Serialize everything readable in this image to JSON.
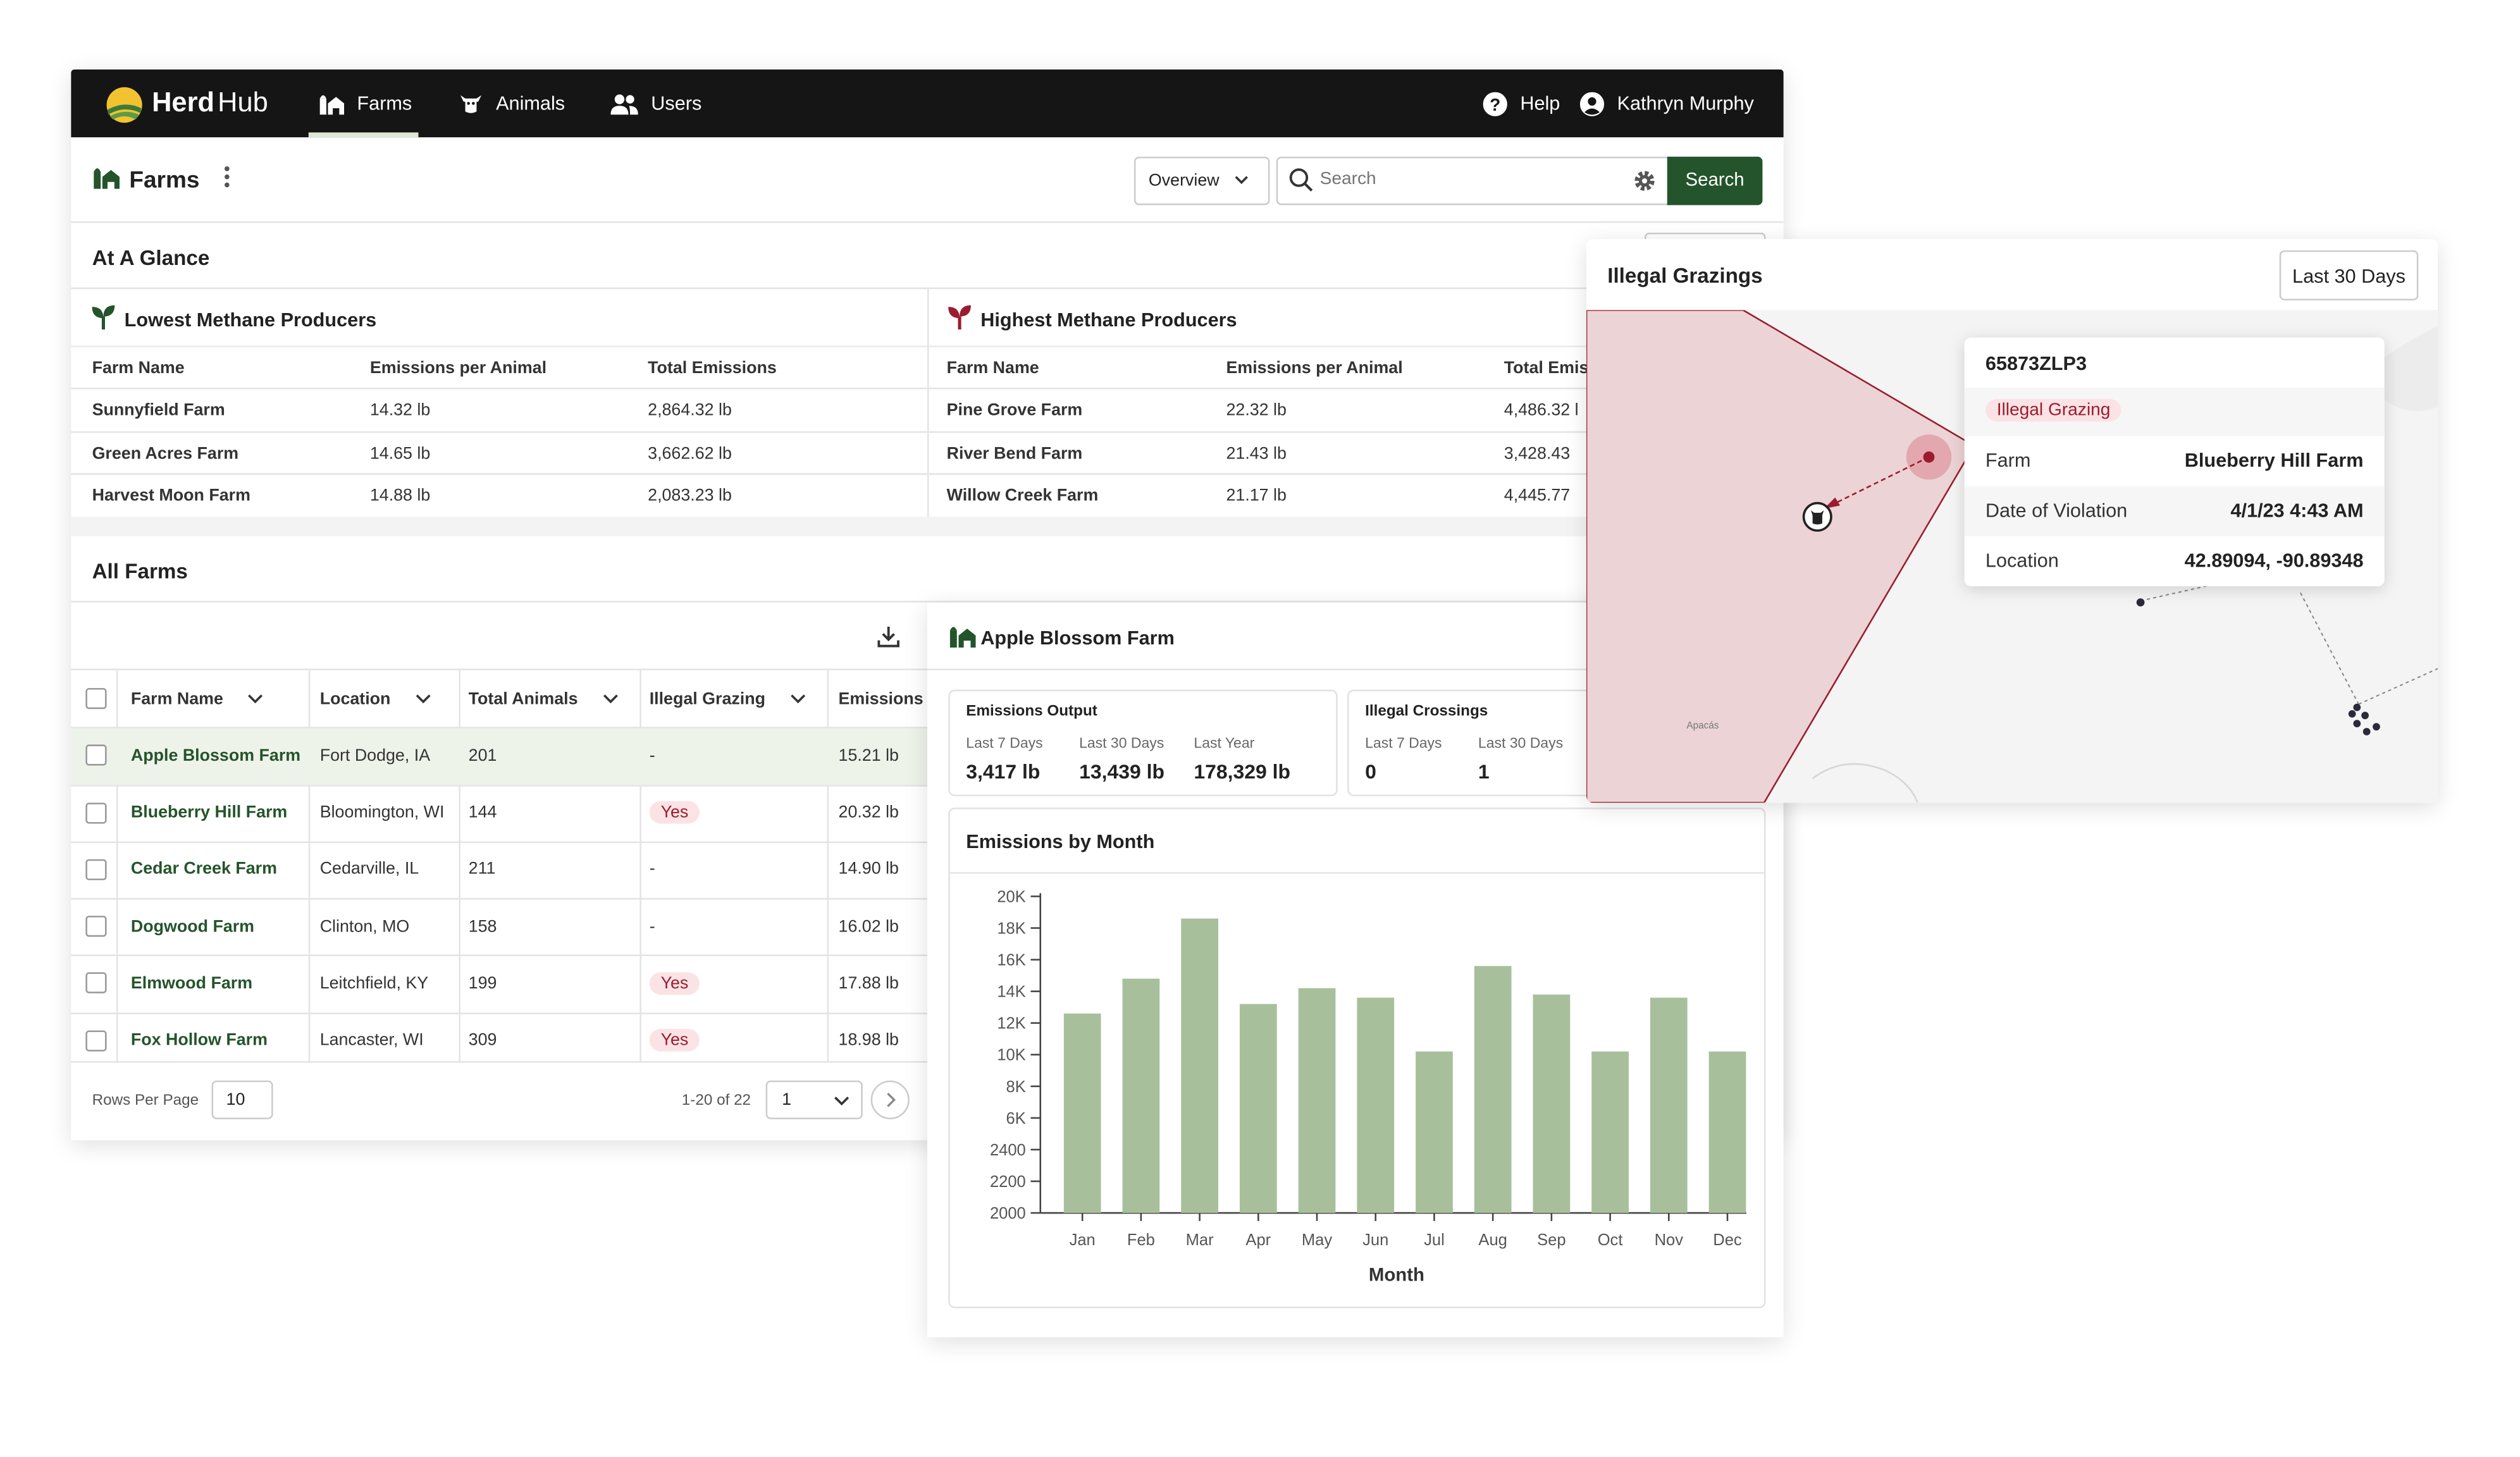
{
  "nav": {
    "logo_bold": "Herd",
    "logo_light": "Hub",
    "tabs": [
      {
        "label": "Farms",
        "icon": "farm-icon"
      },
      {
        "label": "Animals",
        "icon": "cow-icon"
      },
      {
        "label": "Users",
        "icon": "users-icon"
      }
    ],
    "help_label": "Help",
    "user_name": "Kathryn Murphy"
  },
  "page": {
    "title": "Farms",
    "view_select": "Overview",
    "search_placeholder": "Search",
    "search_button": "Search"
  },
  "glance": {
    "title": "At A Glance",
    "lowest": {
      "title": "Lowest Methane Producers",
      "columns": [
        "Farm Name",
        "Emissions per Animal",
        "Total Emissions"
      ],
      "rows": [
        [
          "Sunnyfield Farm",
          "14.32 lb",
          "2,864.32 lb"
        ],
        [
          "Green Acres Farm",
          "14.65 lb",
          "3,662.62 lb"
        ],
        [
          "Harvest Moon Farm",
          "14.88 lb",
          "2,083.23 lb"
        ]
      ]
    },
    "highest": {
      "title": "Highest Methane Producers",
      "columns": [
        "Farm Name",
        "Emissions per Animal",
        "Total Emis"
      ],
      "rows": [
        [
          "Pine Grove Farm",
          "22.32 lb",
          "4,486.32 l"
        ],
        [
          "River Bend Farm",
          "21.43 lb",
          "3,428.43"
        ],
        [
          "Willow Creek Farm",
          "21.17 lb",
          "4,445.77"
        ]
      ]
    }
  },
  "all_farms": {
    "title": "All Farms",
    "columns": [
      "Farm Name",
      "Location",
      "Total Animals",
      "Illegal Grazing",
      "Emissions p"
    ],
    "rows": [
      {
        "name": "Apple Blossom Farm",
        "location": "Fort Dodge, IA",
        "animals": "201",
        "grazing": "-",
        "emissions": "15.21 lb"
      },
      {
        "name": "Blueberry Hill Farm",
        "location": "Bloomington, WI",
        "animals": "144",
        "grazing": "Yes",
        "emissions": "20.32 lb"
      },
      {
        "name": "Cedar Creek Farm",
        "location": "Cedarville, IL",
        "animals": "211",
        "grazing": "-",
        "emissions": "14.90 lb"
      },
      {
        "name": "Dogwood Farm",
        "location": "Clinton, MO",
        "animals": "158",
        "grazing": "-",
        "emissions": "16.02 lb"
      },
      {
        "name": "Elmwood Farm",
        "location": "Leitchfield, KY",
        "animals": "199",
        "grazing": "Yes",
        "emissions": "17.88 lb"
      },
      {
        "name": "Fox Hollow Farm",
        "location": "Lancaster, WI",
        "animals": "309",
        "grazing": "Yes",
        "emissions": "18.98 lb"
      }
    ],
    "rows_per_page_label": "Rows Per Page",
    "rows_per_page": "10",
    "range": "1-20 of 22",
    "page": "1"
  },
  "detail": {
    "farm_name": "Apple Blossom Farm",
    "emissions_output": {
      "title": "Emissions Output",
      "labels": [
        "Last 7 Days",
        "Last 30 Days",
        "Last Year"
      ],
      "values": [
        "3,417 lb",
        "13,439 lb",
        "178,329 lb"
      ]
    },
    "illegal_crossings": {
      "title": "Illegal Crossings",
      "labels": [
        "Last 7 Days",
        "Last 30 Days"
      ],
      "values": [
        "0",
        "1"
      ]
    },
    "chart_title": "Emissions by Month"
  },
  "chart_data": {
    "type": "bar",
    "title": "Emissions by Month",
    "xlabel": "Month",
    "ylabel": "",
    "categories": [
      "Jan",
      "Feb",
      "Mar",
      "Apr",
      "May",
      "Jun",
      "Jul",
      "Aug",
      "Sep",
      "Oct",
      "Nov",
      "Dec"
    ],
    "y_tick_labels": [
      "2000",
      "2200",
      "2400",
      "6K",
      "8K",
      "10K",
      "12K",
      "14K",
      "16K",
      "18K",
      "20K"
    ],
    "values_tick_index": [
      6.3,
      7.4,
      9.3,
      6.6,
      7.1,
      6.8,
      5.1,
      7.8,
      6.9,
      5.1,
      6.8,
      5.1
    ],
    "color": "#a8bf9b",
    "grid": false
  },
  "map": {
    "title": "Illegal Grazings",
    "range_button": "Last 30 Days",
    "place_label": "Apacás",
    "tooltip": {
      "id": "65873ZLP3",
      "badge": "Illegal Grazing",
      "rows": [
        {
          "key": "Farm",
          "value": "Blueberry Hill Farm"
        },
        {
          "key": "Date of Violation",
          "value": "4/1/23 4:43 AM"
        },
        {
          "key": "Location",
          "value": "42.89094, -90.89348"
        }
      ]
    }
  },
  "colors": {
    "nav_bg": "#151515",
    "brand_green": "#24542b",
    "bar_green": "#a8bf9b",
    "alert_red": "#9b1c2e",
    "zone_fill": "#ecd3d6"
  }
}
